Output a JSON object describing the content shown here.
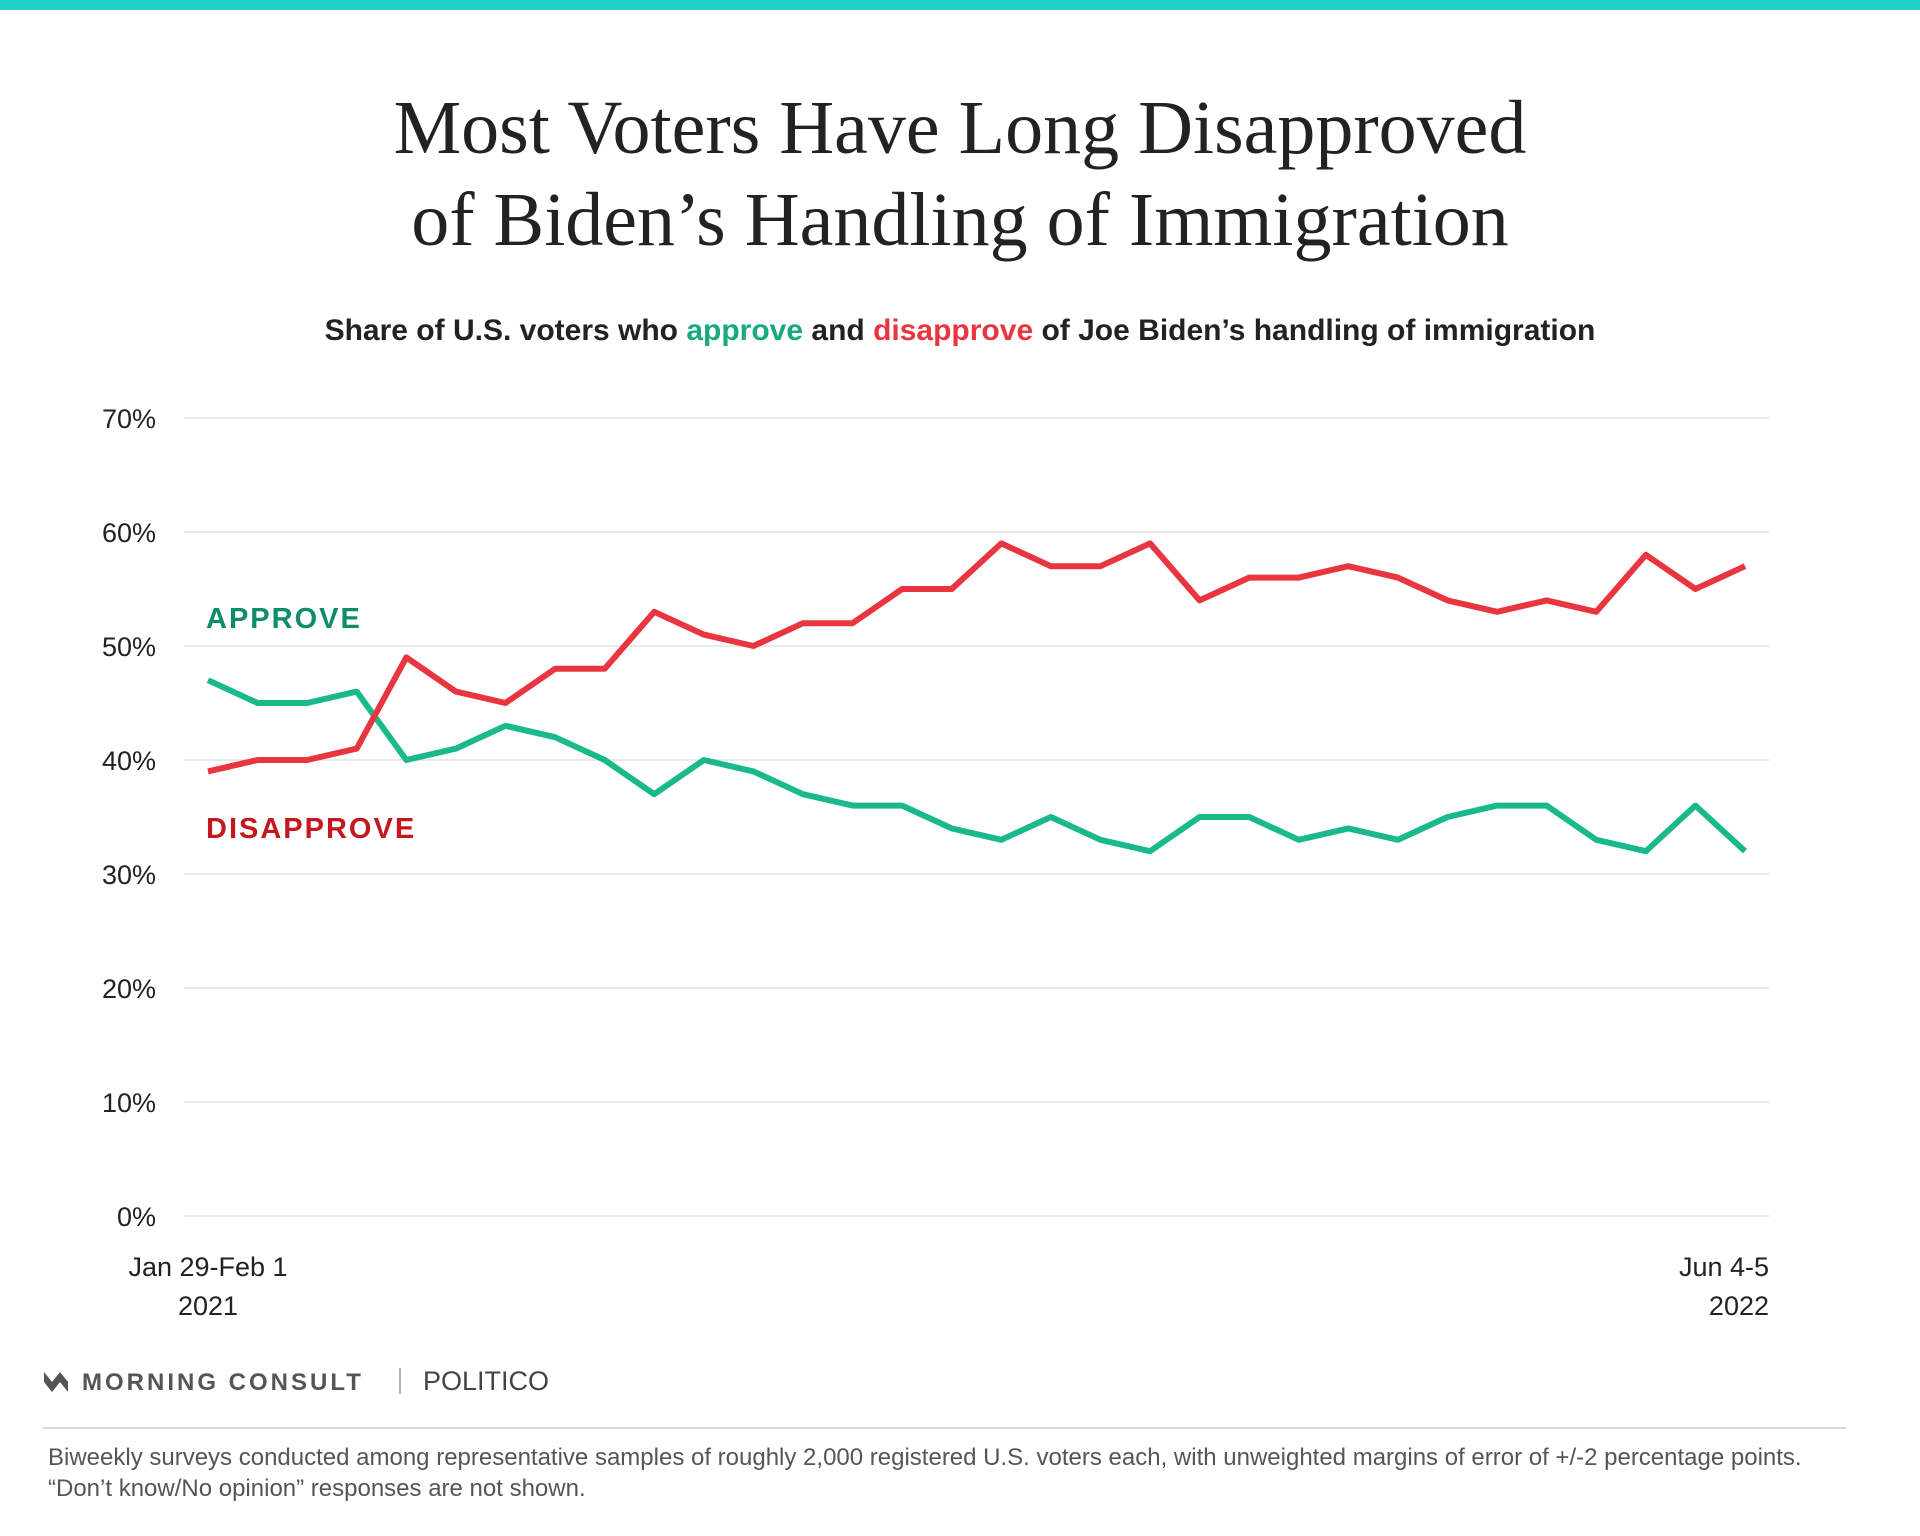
{
  "chart_data": {
    "type": "line",
    "title": [
      "Most Voters Have Long Disapproved",
      "of Biden’s Handling of Immigration"
    ],
    "subtitle_parts": [
      "Share of U.S. voters who ",
      "approve",
      " and ",
      "disapprove",
      " of Joe Biden’s handling of immigration"
    ],
    "categories": [
      "Jan 29-Feb 1 2021",
      null,
      null,
      null,
      null,
      null,
      null,
      null,
      null,
      null,
      null,
      null,
      null,
      null,
      null,
      null,
      null,
      null,
      null,
      null,
      null,
      null,
      null,
      null,
      null,
      null,
      null,
      null,
      null,
      null,
      null,
      "Jun 4-5 2022"
    ],
    "series": [
      {
        "name": "APPROVE",
        "color": "#19b98c",
        "label_color": "#0f8c6b",
        "values": [
          47,
          45,
          45,
          46,
          40,
          41,
          43,
          42,
          40,
          37,
          40,
          39,
          37,
          36,
          36,
          34,
          33,
          35,
          33,
          32,
          35,
          35,
          33,
          34,
          33,
          35,
          36,
          36,
          33,
          32,
          36,
          32
        ]
      },
      {
        "name": "DISAPPROVE",
        "color": "#e8353f",
        "label_color": "#c4181f",
        "values": [
          39,
          40,
          40,
          41,
          49,
          46,
          45,
          48,
          48,
          53,
          51,
          50,
          52,
          52,
          55,
          55,
          59,
          57,
          57,
          59,
          54,
          56,
          56,
          57,
          56,
          54,
          53,
          54,
          53,
          58,
          55,
          57
        ]
      }
    ],
    "ylim": [
      0,
      70
    ],
    "yticks": [
      {
        "value": 0,
        "label": "0%"
      },
      {
        "value": 10,
        "label": "10%"
      },
      {
        "value": 20,
        "label": "20%"
      },
      {
        "value": 30,
        "label": "30%"
      },
      {
        "value": 40,
        "label": "40%"
      },
      {
        "value": 50,
        "label": "50%"
      },
      {
        "value": 60,
        "label": "60%"
      },
      {
        "value": 70,
        "label": "70%"
      }
    ],
    "grid": true,
    "source": [
      "MORNING CONSULT",
      "POLITICO"
    ],
    "note": "Biweekly surveys conducted among representative samples of roughly 2,000 registered U.S. voters each, with unweighted margins of error of +/-2 percentage points. “Don’t know/No opinion” responses are not shown."
  }
}
